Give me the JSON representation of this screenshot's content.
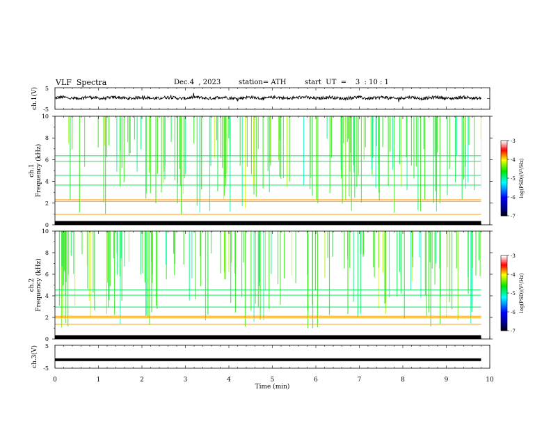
{
  "header": {
    "title": "VLF  Spectra",
    "date": "Dec.4  , 2023",
    "station": "station= ATH",
    "start": "start  UT  =    3  : 10 : 1"
  },
  "chart_data": [
    {
      "type": "line",
      "name": "ch.1 waveform",
      "ylabel": "ch.1(V)",
      "ylim": [
        -5,
        5
      ],
      "yticks": [
        "5",
        "-5"
      ],
      "x_range_min": [
        0,
        9.8
      ],
      "approx_level_v": 0.3,
      "approx_amplitude_v": 1.4
    },
    {
      "type": "heatmap",
      "name": "ch.1 spectrogram",
      "ylabel_channel": "ch.1",
      "ylabel": "Frequency  (kHz)",
      "ylim": [
        0,
        10
      ],
      "yticks": [
        "0",
        "2",
        "4",
        "6",
        "8",
        "10"
      ],
      "x_range_min": [
        0,
        9.8
      ],
      "colorbar": {
        "label": "log(PSD)(V²/Hz)",
        "range": [
          -7,
          -3
        ],
        "ticks": [
          "-3",
          "-4",
          "-5",
          "-6",
          "-7"
        ]
      },
      "bands": [
        {
          "f_khz": [
            0,
            0.35
          ],
          "level": "black"
        },
        {
          "f_khz": [
            0.35,
            1.1
          ],
          "level": "green"
        },
        {
          "f_khz": [
            1.1,
            1.9
          ],
          "level": "blue"
        },
        {
          "f_khz": [
            1.9,
            2.6
          ],
          "level": "yellow"
        },
        {
          "f_khz": [
            2.6,
            5.5
          ],
          "level": "deep blue"
        },
        {
          "f_khz": [
            5.5,
            8.5
          ],
          "level": "blue/cyan"
        },
        {
          "f_khz": [
            8.5,
            10
          ],
          "level": "green/yellow"
        }
      ]
    },
    {
      "type": "heatmap",
      "name": "ch.2 spectrogram",
      "ylabel_channel": "ch.2",
      "ylabel": "Frequency  (kHz)",
      "ylim": [
        0,
        10
      ],
      "yticks": [
        "0",
        "2",
        "4",
        "6",
        "8",
        "10"
      ],
      "x_range_min": [
        0,
        9.8
      ],
      "colorbar": {
        "label": "log(PSD)(V²/Hz)",
        "range": [
          -7,
          -3
        ],
        "ticks": [
          "-3",
          "-4",
          "-5",
          "-6",
          "-7"
        ]
      },
      "bands": [
        {
          "f_khz": [
            0,
            0.3
          ],
          "level": "black"
        },
        {
          "f_khz": [
            0.3,
            1.6
          ],
          "level": "green/cyan"
        },
        {
          "f_khz": [
            1.6,
            2.4
          ],
          "level": "yellow"
        },
        {
          "f_khz": [
            2.4,
            5.0
          ],
          "level": "green/cyan"
        },
        {
          "f_khz": [
            5.0,
            10
          ],
          "level": "blue"
        }
      ]
    },
    {
      "type": "line",
      "name": "ch.3 waveform",
      "ylabel": "ch.3(V)",
      "ylim": [
        -5,
        5
      ],
      "yticks": [
        "5",
        "-5"
      ],
      "x_range_min": [
        0,
        9.8
      ],
      "approx_level_v": -1.3
    }
  ],
  "x_axis": {
    "label": "Time  (min)",
    "range": [
      0,
      10
    ],
    "ticks": [
      "0",
      "1",
      "2",
      "3",
      "4",
      "5",
      "6",
      "7",
      "8",
      "9",
      "10"
    ]
  },
  "colors": {
    "colormap": [
      "#000000",
      "#00007f",
      "#0000ff",
      "#00ffff",
      "#00ff00",
      "#ffff00",
      "#ff0000",
      "#ffffff"
    ]
  }
}
